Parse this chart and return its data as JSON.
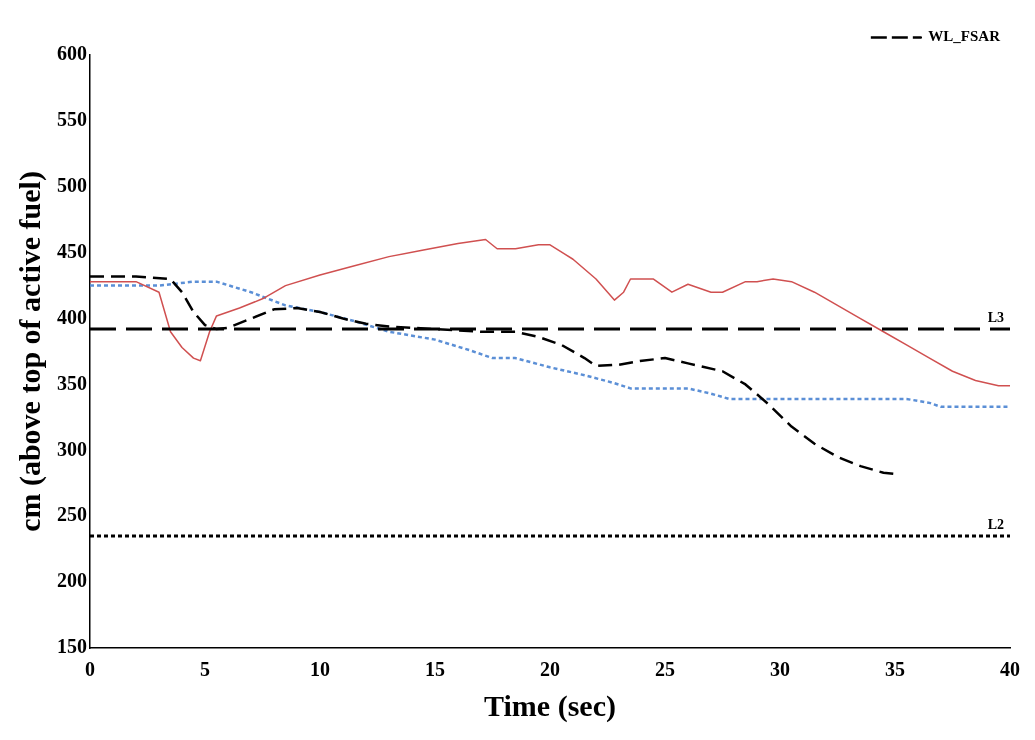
{
  "chart_data": {
    "type": "line",
    "xlabel": "Time (sec)",
    "ylabel": "cm (above top of active fuel)",
    "xlim": [
      0,
      40
    ],
    "xticks": [
      0,
      5,
      10,
      15,
      20,
      25,
      30,
      35,
      40
    ],
    "ylim": [
      150,
      600
    ],
    "yticks": [
      150,
      200,
      250,
      300,
      350,
      400,
      450,
      500,
      550,
      600
    ],
    "grid": false,
    "legend": "top right",
    "marker": "none",
    "series": [
      {
        "name": "WL_FSAR",
        "color": "#000000",
        "line_style": "dashed",
        "x": [
          0,
          2,
          3.5,
          4,
          4.5,
          5,
          5.5,
          6,
          7,
          8,
          9,
          10,
          11,
          12,
          13,
          15,
          17,
          18.5,
          19.5,
          20.5,
          21.5,
          22,
          23,
          24,
          25,
          26,
          27.5,
          28.5,
          29.5,
          30.5,
          31.5,
          32.5,
          33.5,
          34.5,
          35
        ],
        "values": [
          432,
          432,
          430,
          420,
          405,
          395,
          392,
          393,
          400,
          407,
          408,
          405,
          400,
          396,
          394,
          392,
          390,
          390,
          386,
          380,
          370,
          364,
          365,
          368,
          370,
          366,
          360,
          350,
          335,
          318,
          305,
          295,
          288,
          283,
          282
        ]
      },
      {
        "color": "#d05050",
        "line_style": "solid",
        "x": [
          0,
          2,
          3,
          3.5,
          4,
          4.5,
          4.8,
          5.2,
          5.5,
          6.5,
          7.5,
          8.5,
          10,
          11.5,
          13,
          14.5,
          16,
          17.2,
          17.7,
          18.5,
          19.5,
          20,
          21,
          22,
          22.8,
          23.2,
          23.5,
          24.5,
          25.3,
          26,
          27,
          27.5,
          28.5,
          29,
          29.7,
          30.5,
          31.5,
          32.5,
          33.5,
          34.5,
          35.5,
          36.5,
          37.5,
          38.5,
          39.5,
          40
        ],
        "values": [
          428,
          428,
          420,
          390,
          378,
          370,
          368,
          390,
          402,
          408,
          415,
          425,
          433,
          440,
          447,
          452,
          457,
          460,
          453,
          453,
          456,
          456,
          445,
          430,
          414,
          420,
          430,
          430,
          420,
          426,
          420,
          420,
          428,
          428,
          430,
          428,
          420,
          410,
          400,
          390,
          380,
          370,
          360,
          353,
          349,
          349
        ]
      },
      {
        "color": "#5b8fd6",
        "line_style": "dotted",
        "x": [
          0,
          3,
          4.5,
          5.5,
          7,
          8.5,
          10,
          11.5,
          13,
          15,
          16.5,
          17.5,
          18.5,
          20,
          21.5,
          22.8,
          23.5,
          26,
          27,
          27.8,
          35.5,
          36.5,
          37,
          40
        ],
        "values": [
          425,
          425,
          428,
          428,
          420,
          410,
          405,
          398,
          390,
          384,
          376,
          370,
          370,
          363,
          357,
          351,
          347,
          347,
          343,
          339,
          339,
          336,
          333,
          333
        ]
      }
    ],
    "ref_lines": [
      {
        "axis": "y",
        "value": 392,
        "label": "L3",
        "color": "#000000",
        "line_style": "dashed"
      },
      {
        "axis": "y",
        "value": 235,
        "label": "L2",
        "color": "#000000",
        "line_style": "dotted"
      }
    ]
  }
}
